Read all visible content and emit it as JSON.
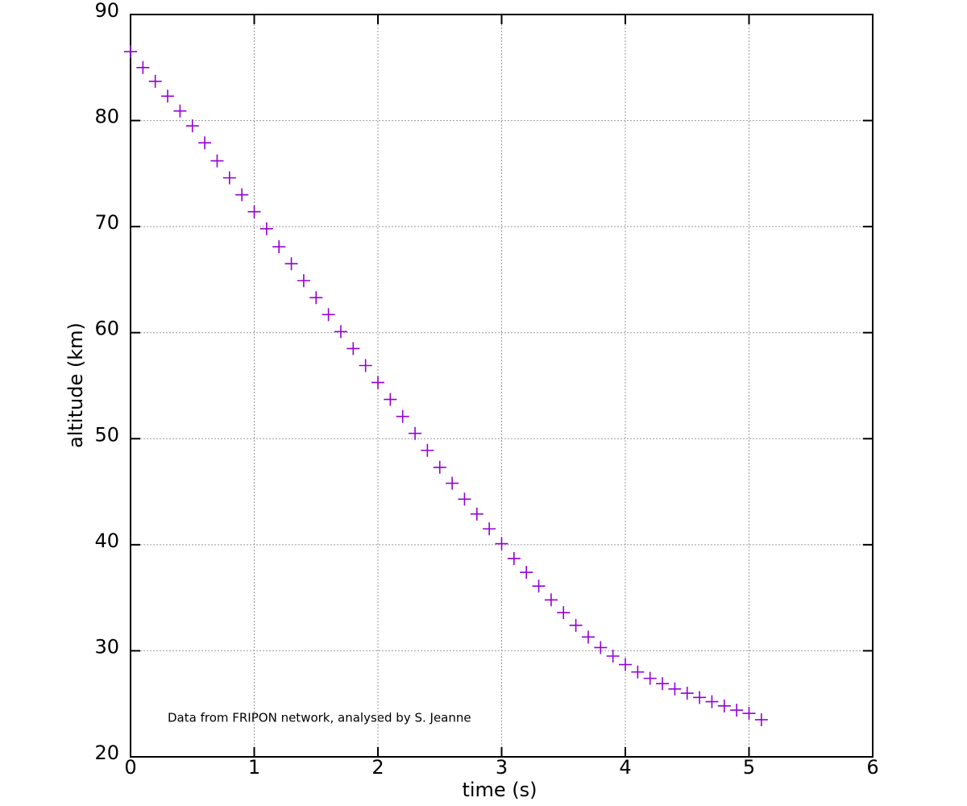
{
  "chart_data": {
    "type": "scatter",
    "xlabel": "time (s)",
    "ylabel": "altitude (km)",
    "annotation": "Data from FRIPON network, analysed by S. Jeanne",
    "xlim": [
      0,
      6
    ],
    "ylim": [
      20,
      90
    ],
    "xticks": [
      0,
      1,
      2,
      3,
      4,
      5,
      6
    ],
    "yticks": [
      20,
      30,
      40,
      50,
      60,
      70,
      80,
      90
    ],
    "grid": true,
    "series": [
      {
        "color": "#9400d3",
        "x": [
          0,
          0.1,
          0.2,
          0.3,
          0.4,
          0.5,
          0.6,
          0.7,
          0.8,
          0.9,
          1.0,
          1.1,
          1.2,
          1.3,
          1.4,
          1.5,
          1.6,
          1.7,
          1.8,
          1.9,
          2.0,
          2.1,
          2.2,
          2.3,
          2.4,
          2.5,
          2.6,
          2.7,
          2.8,
          2.9,
          3.0,
          3.1,
          3.2,
          3.3,
          3.4,
          3.5,
          3.6,
          3.7,
          3.8,
          3.9,
          4.0,
          4.1,
          4.2,
          4.3,
          4.4,
          4.5,
          4.6,
          4.7,
          4.8,
          4.9,
          5.0,
          5.1
        ],
        "values": [
          86.5,
          85.0,
          83.7,
          82.3,
          80.9,
          79.5,
          77.9,
          76.2,
          74.6,
          73.0,
          71.4,
          69.8,
          68.1,
          66.5,
          64.9,
          63.3,
          61.7,
          60.1,
          58.5,
          56.9,
          55.3,
          53.7,
          52.1,
          50.5,
          48.9,
          47.3,
          45.8,
          44.3,
          42.9,
          41.5,
          40.1,
          38.7,
          37.4,
          36.1,
          34.8,
          33.6,
          32.4,
          31.3,
          30.3,
          29.5,
          28.7,
          28.0,
          27.4,
          26.9,
          26.4,
          26.0,
          25.6,
          25.2,
          24.8,
          24.4,
          24.1,
          23.5
        ]
      }
    ]
  }
}
